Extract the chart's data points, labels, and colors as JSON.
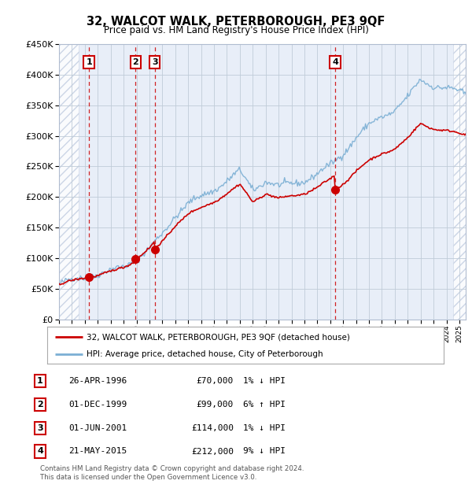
{
  "title": "32, WALCOT WALK, PETERBOROUGH, PE3 9QF",
  "subtitle": "Price paid vs. HM Land Registry's House Price Index (HPI)",
  "xlim_start": 1994.0,
  "xlim_end": 2025.5,
  "ylim_min": 0,
  "ylim_max": 450000,
  "hpi_color": "#7bafd4",
  "price_color": "#cc0000",
  "transaction_dates": [
    1996.32,
    1999.92,
    2001.42,
    2015.38
  ],
  "transaction_prices": [
    70000,
    99000,
    114000,
    212000
  ],
  "transaction_labels": [
    "1",
    "2",
    "3",
    "4"
  ],
  "legend_line1": "32, WALCOT WALK, PETERBOROUGH, PE3 9QF (detached house)",
  "legend_line2": "HPI: Average price, detached house, City of Peterborough",
  "table_entries": [
    {
      "num": "1",
      "date": "26-APR-1996",
      "price": "£70,000",
      "hpi": "1% ↓ HPI"
    },
    {
      "num": "2",
      "date": "01-DEC-1999",
      "price": "£99,000",
      "hpi": "6% ↑ HPI"
    },
    {
      "num": "3",
      "date": "01-JUN-2001",
      "price": "£114,000",
      "hpi": "1% ↓ HPI"
    },
    {
      "num": "4",
      "date": "21-MAY-2015",
      "price": "£212,000",
      "hpi": "9% ↓ HPI"
    }
  ],
  "footer": "Contains HM Land Registry data © Crown copyright and database right 2024.\nThis data is licensed under the Open Government Licence v3.0.",
  "background_color": "#ffffff",
  "plot_bg_color": "#e8eef8",
  "hatch_end": 1995.5,
  "hatch_start2": 2024.5
}
